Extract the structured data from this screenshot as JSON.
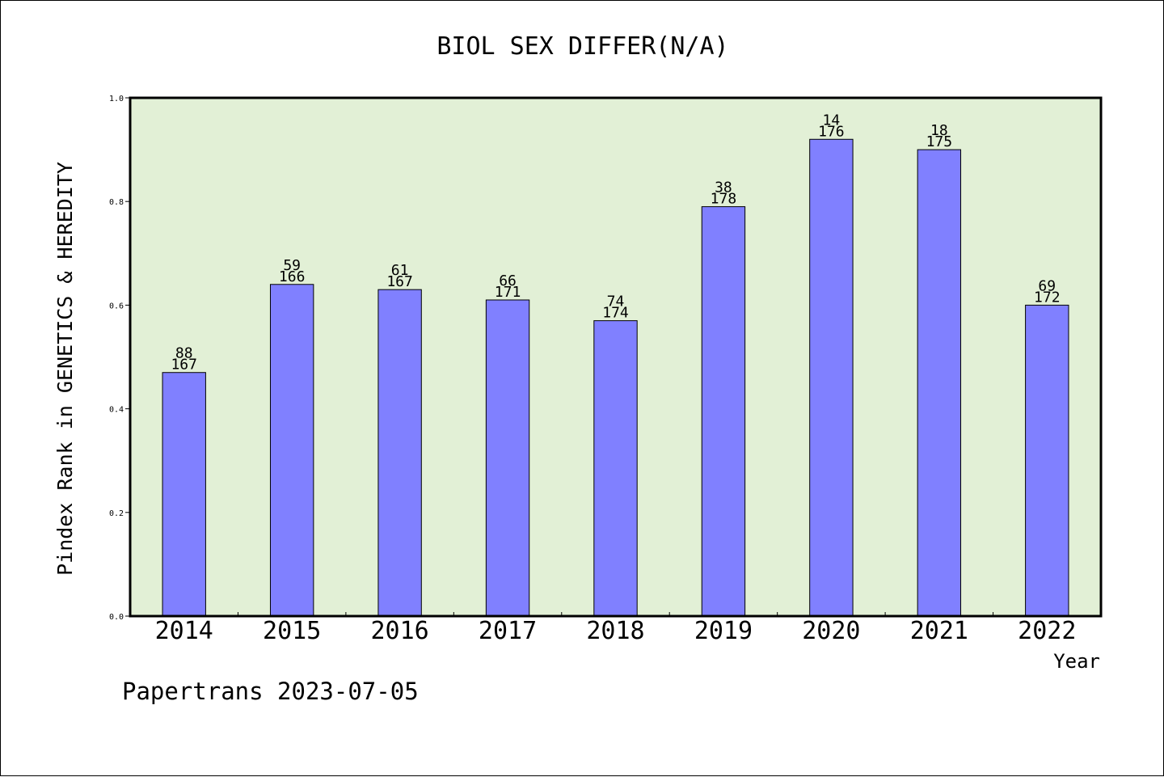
{
  "chart_data": {
    "type": "bar",
    "title": "BIOL SEX DIFFER(N/A)",
    "xlabel": "Year",
    "ylabel": "Pindex Rank in GENETICS & HEREDITY",
    "footer": "Papertrans 2023-07-05",
    "categories": [
      "2014",
      "2015",
      "2016",
      "2017",
      "2018",
      "2019",
      "2020",
      "2021",
      "2022"
    ],
    "values": [
      0.47,
      0.64,
      0.63,
      0.61,
      0.57,
      0.79,
      0.92,
      0.9,
      0.6
    ],
    "rank_labels": [
      "88",
      "59",
      "61",
      "66",
      "74",
      "38",
      "14",
      "18",
      "69"
    ],
    "total_labels": [
      "167",
      "166",
      "167",
      "171",
      "174",
      "178",
      "176",
      "175",
      "172"
    ],
    "ylim": [
      0,
      1.0
    ],
    "yticks": [
      "0.0",
      "0.2",
      "0.4",
      "0.6",
      "0.8",
      "1.0"
    ],
    "grid": false,
    "colors": {
      "plot_background": "#e2f0d6",
      "bar_fill": "#8080ff",
      "bar_edge": "#000000"
    }
  }
}
